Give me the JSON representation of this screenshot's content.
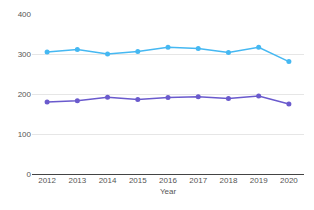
{
  "chart_data": {
    "type": "line",
    "x_label": "Year",
    "categories": [
      "2012",
      "2013",
      "2014",
      "2015",
      "2016",
      "2017",
      "2018",
      "2019",
      "2020"
    ],
    "series": [
      {
        "color": "#45b8f2",
        "values": [
          305,
          311,
          300,
          306,
          317,
          314,
          304,
          317,
          281
        ]
      },
      {
        "color": "#6a5acd",
        "values": [
          180,
          183,
          192,
          186,
          191,
          193,
          189,
          195,
          175
        ]
      }
    ],
    "ylim": [
      0,
      400
    ],
    "yticks": [
      0,
      100,
      200,
      300,
      400
    ],
    "grid": true,
    "marker": "circle",
    "line_style": "solid"
  }
}
